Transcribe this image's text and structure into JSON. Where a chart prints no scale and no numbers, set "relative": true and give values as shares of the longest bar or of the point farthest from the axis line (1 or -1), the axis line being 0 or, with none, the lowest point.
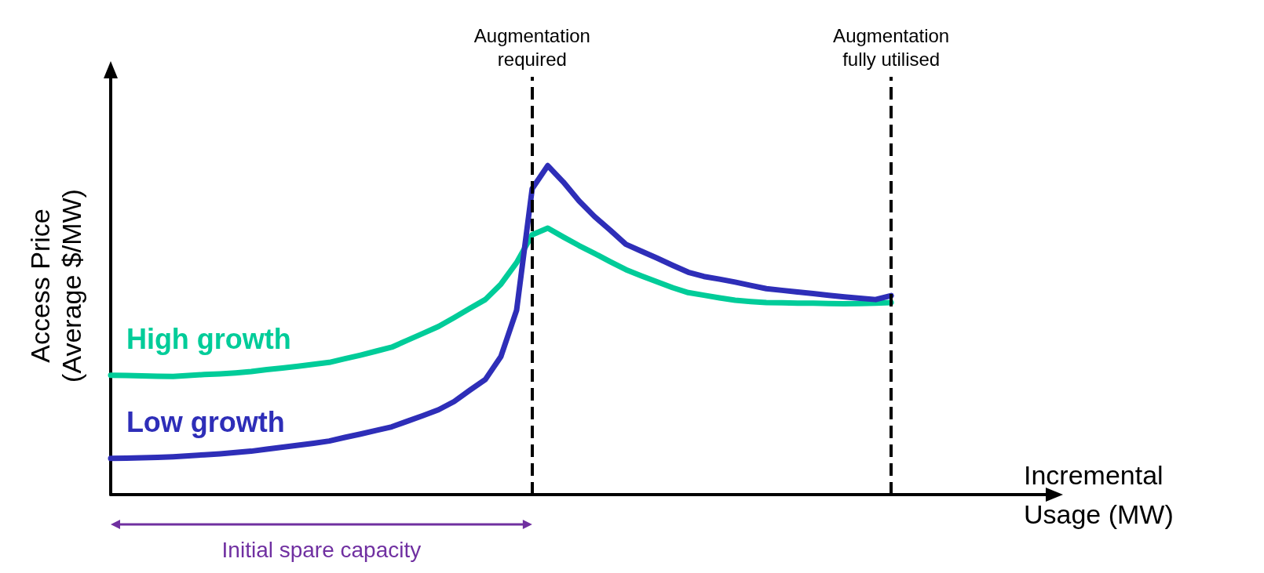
{
  "chart_data": {
    "type": "line",
    "relative": true,
    "xlabel": "Incremental\nUsage (MW)",
    "ylabel": "Access Price\n(Average $/MW)",
    "legend": false,
    "grid": false,
    "marker": "none",
    "line_style": "solid",
    "categories": [
      null,
      null,
      null,
      null,
      null,
      null,
      null,
      null,
      null,
      null,
      null,
      null,
      null,
      null,
      null,
      null,
      null,
      null,
      null,
      null,
      null,
      null,
      null,
      null,
      null,
      null,
      null,
      null,
      null,
      null,
      null,
      null,
      null,
      null,
      null,
      null,
      null,
      null,
      null,
      null,
      null,
      null,
      null,
      null,
      null,
      null,
      null,
      null,
      null,
      null,
      null,
      null,
      null,
      null,
      null,
      null,
      null,
      null,
      null,
      null,
      null
    ],
    "series": [
      {
        "name": "High growth",
        "color": "#00cc99",
        "values": [
          0.363,
          0.362,
          0.361,
          0.36,
          0.359,
          0.362,
          0.365,
          0.367,
          0.37,
          0.374,
          0.38,
          0.385,
          0.39,
          0.396,
          0.402,
          0.413,
          0.424,
          0.436,
          0.448,
          0.469,
          0.49,
          0.511,
          0.538,
          0.566,
          0.593,
          0.64,
          0.705,
          0.79,
          0.81,
          0.783,
          0.757,
          0.733,
          0.708,
          0.684,
          0.665,
          0.647,
          0.629,
          0.614,
          0.606,
          0.598,
          0.591,
          0.587,
          0.584,
          0.583,
          0.582,
          0.582,
          0.581,
          0.58,
          0.581,
          0.582,
          0.584,
          null,
          null,
          null,
          null,
          null,
          null,
          null,
          null,
          null,
          null
        ]
      },
      {
        "name": "Low growth",
        "color": "#2e2eb8",
        "values": [
          0.11,
          0.111,
          0.112,
          0.113,
          0.115,
          0.118,
          0.121,
          0.124,
          0.128,
          0.132,
          0.138,
          0.144,
          0.15,
          0.156,
          0.163,
          0.174,
          0.184,
          0.195,
          0.206,
          0.223,
          0.24,
          0.258,
          0.283,
          0.317,
          0.35,
          0.42,
          0.56,
          0.93,
          1,
          0.95,
          0.893,
          0.845,
          0.804,
          0.761,
          0.74,
          0.719,
          0.697,
          0.676,
          0.663,
          0.655,
          0.646,
          0.636,
          0.626,
          0.621,
          0.616,
          0.611,
          0.606,
          0.601,
          0.597,
          0.593,
          0.605,
          null,
          null,
          null,
          null,
          null,
          null,
          null,
          null,
          null,
          null
        ]
      }
    ],
    "annotations": [
      "Augmentation\nrequired",
      "Augmentation\nfully utilised",
      "Initial spare capacity"
    ]
  }
}
